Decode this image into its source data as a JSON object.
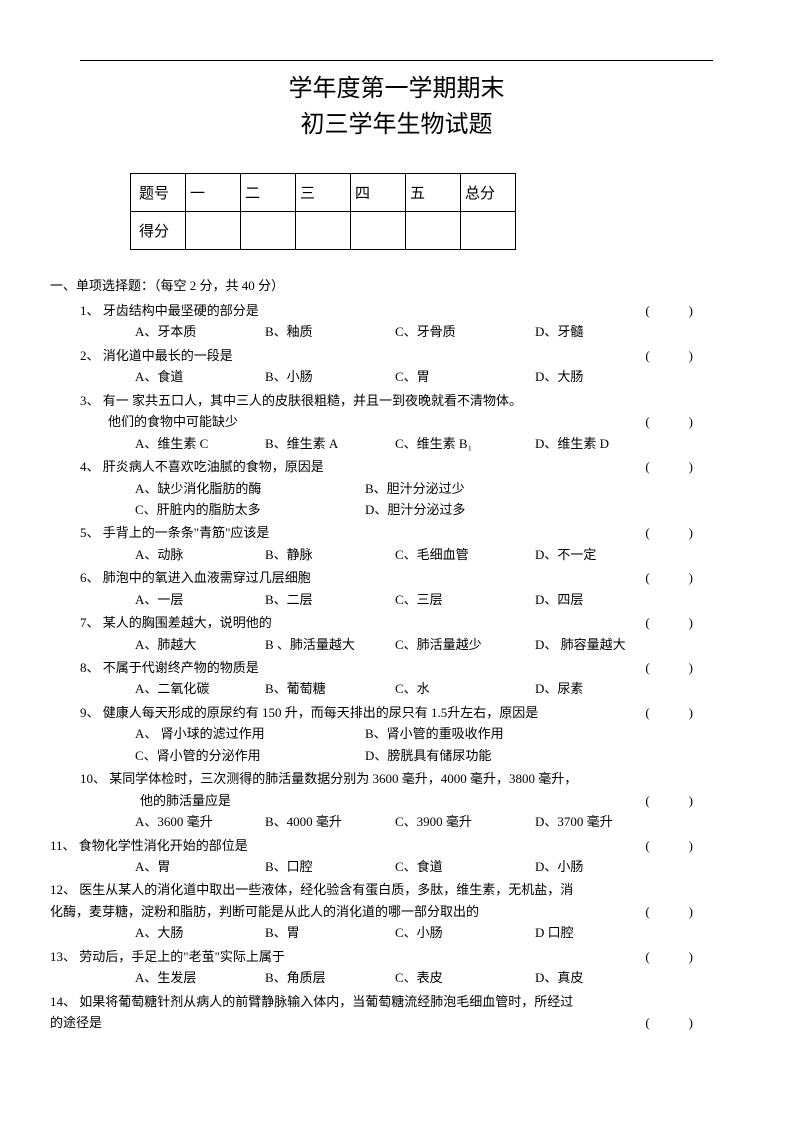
{
  "title": {
    "line1": "学年度第一学期期末",
    "line2": "初三学年生物试题"
  },
  "scoreTable": {
    "row1": [
      "题号",
      "一",
      "二",
      "三",
      "四",
      "五",
      "总分"
    ],
    "row2": [
      "得分",
      "",
      "",
      "",
      "",
      "",
      ""
    ]
  },
  "section1": {
    "header": "一、单项选择题：（每空 2 分，共 40 分）",
    "questions": [
      {
        "num": "1、",
        "text": "牙齿结构中最坚硬的部分是",
        "paren": "(　　　)",
        "opts": [
          "A、牙本质",
          "B、釉质",
          "C、牙骨质",
          "D、牙髓"
        ]
      },
      {
        "num": "2、",
        "text": "消化道中最长的一段是",
        "paren": "(　　　)",
        "opts": [
          "A、食道",
          "B、小肠",
          "C、胃",
          "D、大肠"
        ]
      },
      {
        "num": "3、",
        "text": "有一 家共五口人，其中三人的皮肤很粗糙，并且一到夜晚就看不清物体。",
        "text2": "他们的食物中可能缺少",
        "paren": "(　　　)",
        "opts": [
          "A、维生素 C",
          "B、维生素 A",
          "C、维生素 B₁",
          "D、维生素 D"
        ]
      },
      {
        "num": "4、",
        "text": "肝炎病人不喜欢吃油腻的食物，原因是",
        "paren": "(　　　)",
        "opts2": [
          [
            "A、缺少消化脂肪的酶",
            "B、胆汁分泌过少"
          ],
          [
            "C、肝脏内的脂肪太多",
            "D、胆汁分泌过多"
          ]
        ]
      },
      {
        "num": "5、",
        "text": "手背上的一条条\"青筋\"应该是",
        "paren": "(　　　)",
        "opts": [
          "A、动脉",
          "B、静脉",
          "C、毛细血管",
          "D、不一定"
        ]
      },
      {
        "num": "6、",
        "text": "肺泡中的氧进入血液需穿过几层细胞",
        "paren": "(　　　)",
        "opts": [
          "A、一层",
          "B、二层",
          "C、三层",
          "D、四层"
        ]
      },
      {
        "num": "7、",
        "text": "某人的胸围差越大，说明他的",
        "paren": "(　　　)",
        "opts": [
          "A、肺越大",
          "B 、肺活量越大",
          "C、肺活量越少",
          "D、 肺容量越大"
        ]
      },
      {
        "num": "8、",
        "text": "不属于代谢终产物的物质是",
        "paren": "(　　　)",
        "opts": [
          "A、二氧化碳",
          "B、葡萄糖",
          "C、水",
          "D、尿素"
        ]
      },
      {
        "num": "9、",
        "text": "健康人每天形成的原尿约有 150 升，而每天排出的尿只有 1.5升左右，原因是",
        "paren": "(　　　)",
        "opts2": [
          [
            "A、 肾小球的滤过作用",
            "B、肾小管的重吸收作用"
          ],
          [
            "C、肾小管的分泌作用",
            "D、膀胱具有储尿功能"
          ]
        ]
      },
      {
        "num": "10、",
        "text": "某同学体检时，三次测得的肺活量数据分别为 3600 毫升，4000 毫升，3800 毫升，",
        "text2": "他的肺活量应是",
        "paren": "(　　　)",
        "opts": [
          "A、3600 毫升",
          "B、4000 毫升",
          "C、3900 毫升",
          "D、3700 毫升"
        ]
      },
      {
        "num": "11、",
        "text": "食物化学性消化开始的部位是",
        "paren": "(　　　)",
        "opts": [
          "A、胃",
          "B、口腔",
          "C、食道",
          "D、小肠"
        ],
        "outdent": true
      },
      {
        "num": "12、",
        "text": "医生从某人的消化道中取出一些液体，经化验含有蛋白质，多肽，维生素，无机盐，消",
        "text2": "化酶，麦芽糖，淀粉和脂肪，判断可能是从此人的消化道的哪一部分取出的",
        "paren": "(　　　)",
        "opts": [
          "A、大肠",
          "B、胃",
          "C、小肠",
          "D 口腔"
        ],
        "outdent": true
      },
      {
        "num": "13、",
        "text": "劳动后，手足上的\"老茧\"实际上属于",
        "paren": "(　　　)",
        "opts": [
          "A、生发层",
          "B、角质层",
          "C、表皮",
          "D、真皮"
        ],
        "outdent": true
      },
      {
        "num": "14、",
        "text": "如果将葡萄糖针剂从病人的前臂静脉输入体内，当葡萄糖流经肺泡毛细血管时，所经过",
        "text2": "的途径是",
        "paren": "(　　　)",
        "outdent": true
      }
    ]
  }
}
